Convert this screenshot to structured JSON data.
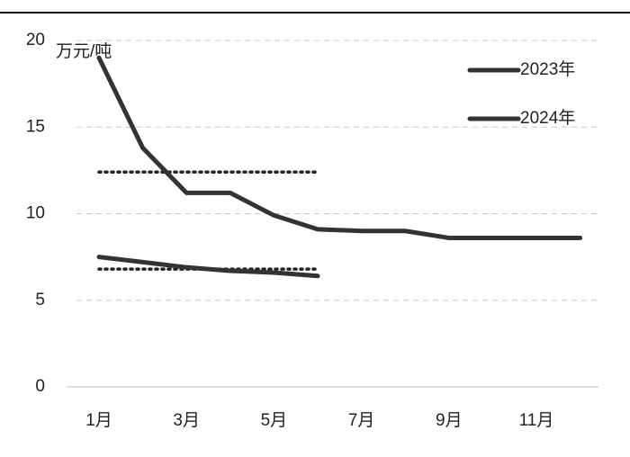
{
  "chart_data": {
    "type": "line",
    "y_unit": "万元/吨",
    "categories": [
      "1月",
      null,
      "3月",
      null,
      "5月",
      null,
      "7月",
      null,
      "9月",
      null,
      "11月",
      null
    ],
    "series": [
      {
        "name": "2023年",
        "color": "#333333",
        "values": [
          19,
          13.8,
          11.2,
          11.2,
          9.9,
          9.1,
          9.0,
          9.0,
          8.6,
          8.6,
          8.6,
          8.6
        ]
      },
      {
        "name": "2024年",
        "color": "#333333",
        "values": [
          7.5,
          7.2,
          6.9,
          6.7,
          6.6,
          6.4,
          null,
          null,
          null,
          null,
          null,
          null
        ]
      }
    ],
    "dotted_lines": [
      12.4,
      6.8
    ],
    "ylim": [
      0,
      20
    ],
    "yticks": [
      0,
      5,
      10,
      15,
      20
    ],
    "grid": true
  }
}
